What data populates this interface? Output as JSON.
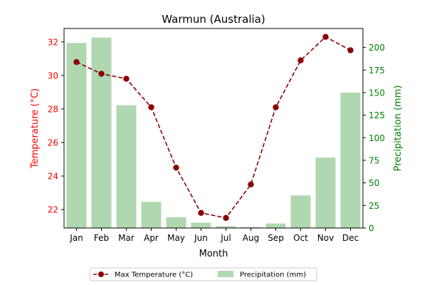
{
  "chart_data": {
    "type": "bar+line",
    "title": "Warmun (Australia)",
    "xlabel": "Month",
    "ylabel_left": "Temperature (°C)",
    "ylabel_right": "Precipitation (mm)",
    "categories": [
      "Jan",
      "Feb",
      "Mar",
      "Apr",
      "May",
      "Jun",
      "Jul",
      "Aug",
      "Sep",
      "Oct",
      "Nov",
      "Dec"
    ],
    "y_left": {
      "range": [
        20.9,
        32.8
      ],
      "ticks": [
        22,
        24,
        26,
        28,
        30,
        32
      ]
    },
    "y_right": {
      "range": [
        0,
        221
      ],
      "ticks": [
        0,
        25,
        50,
        75,
        100,
        125,
        150,
        175,
        200
      ]
    },
    "grid": false,
    "legend_position": "bottom-center",
    "series": [
      {
        "name": "Max Temperature (°C)",
        "type": "line",
        "axis": "left",
        "values": [
          30.8,
          30.1,
          29.8,
          28.1,
          24.5,
          21.8,
          21.5,
          23.5,
          28.1,
          30.9,
          32.3,
          31.5
        ]
      },
      {
        "name": "Precipitation (mm)",
        "type": "bar",
        "axis": "right",
        "values": [
          205,
          211,
          136,
          29,
          12,
          6,
          2,
          1,
          5,
          36,
          78,
          150
        ]
      }
    ],
    "colors": {
      "temperature": "#8b0000",
      "temperature_axis": "#ff0000",
      "precipitation": "#b0d8b0",
      "precipitation_axis": "#008000"
    }
  }
}
